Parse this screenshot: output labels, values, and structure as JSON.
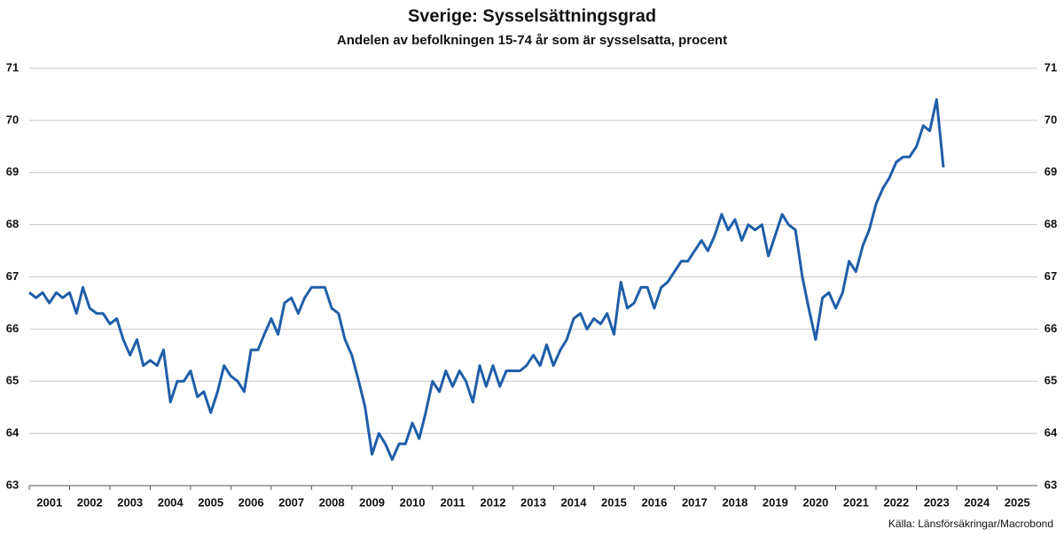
{
  "chart_data": {
    "type": "line",
    "title": "Sverige: Sysselsättningsgrad",
    "subtitle": "Andelen av befolkningen 15-74 år som är sysselsatta, procent",
    "source": "Källa: Länsförsäkringar/Macrobond",
    "x": [
      2001,
      2001.17,
      2001.33,
      2001.5,
      2001.67,
      2001.83,
      2002,
      2002.17,
      2002.33,
      2002.5,
      2002.67,
      2002.83,
      2003,
      2003.17,
      2003.33,
      2003.5,
      2003.67,
      2003.83,
      2004,
      2004.17,
      2004.33,
      2004.5,
      2004.67,
      2004.83,
      2005,
      2005.17,
      2005.33,
      2005.5,
      2005.67,
      2005.83,
      2006,
      2006.17,
      2006.33,
      2006.5,
      2006.67,
      2006.83,
      2007,
      2007.17,
      2007.33,
      2007.5,
      2007.67,
      2007.83,
      2008,
      2008.17,
      2008.33,
      2008.5,
      2008.67,
      2008.83,
      2009,
      2009.17,
      2009.33,
      2009.5,
      2009.67,
      2009.83,
      2010,
      2010.17,
      2010.33,
      2010.5,
      2010.67,
      2010.83,
      2011,
      2011.17,
      2011.33,
      2011.5,
      2011.67,
      2011.83,
      2012,
      2012.17,
      2012.33,
      2012.5,
      2012.67,
      2012.83,
      2013,
      2013.17,
      2013.33,
      2013.5,
      2013.67,
      2013.83,
      2014,
      2014.17,
      2014.33,
      2014.5,
      2014.67,
      2014.83,
      2015,
      2015.17,
      2015.33,
      2015.5,
      2015.67,
      2015.83,
      2016,
      2016.17,
      2016.33,
      2016.5,
      2016.67,
      2016.83,
      2017,
      2017.17,
      2017.33,
      2017.5,
      2017.67,
      2017.83,
      2018,
      2018.17,
      2018.33,
      2018.5,
      2018.67,
      2018.83,
      2019,
      2019.17,
      2019.33,
      2019.5,
      2019.67,
      2019.83,
      2020,
      2020.17,
      2020.33,
      2020.5,
      2020.67,
      2020.83,
      2021,
      2021.17,
      2021.33,
      2021.5,
      2021.67,
      2021.83,
      2022,
      2022.17,
      2022.33,
      2022.5,
      2022.67,
      2022.83,
      2023,
      2023.17,
      2023.33,
      2023.5,
      2023.67
    ],
    "series": [
      {
        "color": "#1f5ea8",
        "values": [
          66.7,
          66.6,
          66.7,
          66.5,
          66.7,
          66.6,
          66.7,
          66.3,
          66.8,
          66.4,
          66.3,
          66.3,
          66.1,
          66.2,
          65.8,
          65.5,
          65.8,
          65.3,
          65.4,
          65.3,
          65.6,
          64.6,
          65.0,
          65.0,
          65.2,
          64.7,
          64.8,
          64.4,
          64.8,
          65.3,
          65.1,
          65.0,
          64.8,
          65.6,
          65.6,
          65.9,
          66.2,
          65.9,
          66.5,
          66.6,
          66.3,
          66.6,
          66.8,
          66.8,
          66.8,
          66.4,
          66.3,
          65.8,
          65.5,
          65.0,
          64.5,
          63.6,
          64.0,
          63.8,
          63.5,
          63.8,
          63.8,
          64.2,
          63.9,
          64.4,
          65.0,
          64.8,
          65.2,
          64.9,
          65.2,
          65.0,
          64.6,
          65.3,
          64.9,
          65.3,
          64.9,
          65.2,
          65.2,
          65.2,
          65.3,
          65.5,
          65.3,
          65.7,
          65.3,
          65.6,
          65.8,
          66.2,
          66.3,
          66.0,
          66.2,
          66.1,
          66.3,
          65.9,
          66.9,
          66.4,
          66.5,
          66.8,
          66.8,
          66.4,
          66.8,
          66.9,
          67.1,
          67.3,
          67.3,
          67.5,
          67.7,
          67.5,
          67.8,
          68.2,
          67.9,
          68.1,
          67.7,
          68.0,
          67.9,
          68.0,
          67.4,
          67.8,
          68.2,
          68.0,
          67.9,
          67.0,
          66.4,
          65.8,
          66.6,
          66.7,
          66.4,
          66.7,
          67.3,
          67.1,
          67.6,
          67.9,
          68.4,
          68.7,
          68.9,
          69.2,
          69.3,
          69.3,
          69.5,
          69.9,
          69.8,
          70.4,
          69.1
        ]
      }
    ],
    "xlim": [
      2001,
      2026
    ],
    "xticks": [
      2001,
      2002,
      2003,
      2004,
      2005,
      2006,
      2007,
      2008,
      2009,
      2010,
      2011,
      2012,
      2013,
      2014,
      2015,
      2016,
      2017,
      2018,
      2019,
      2020,
      2021,
      2022,
      2023,
      2024,
      2025
    ],
    "ylim": [
      63,
      71
    ],
    "yticks": [
      63,
      64,
      65,
      66,
      67,
      68,
      69,
      70,
      71
    ],
    "grid": true
  }
}
